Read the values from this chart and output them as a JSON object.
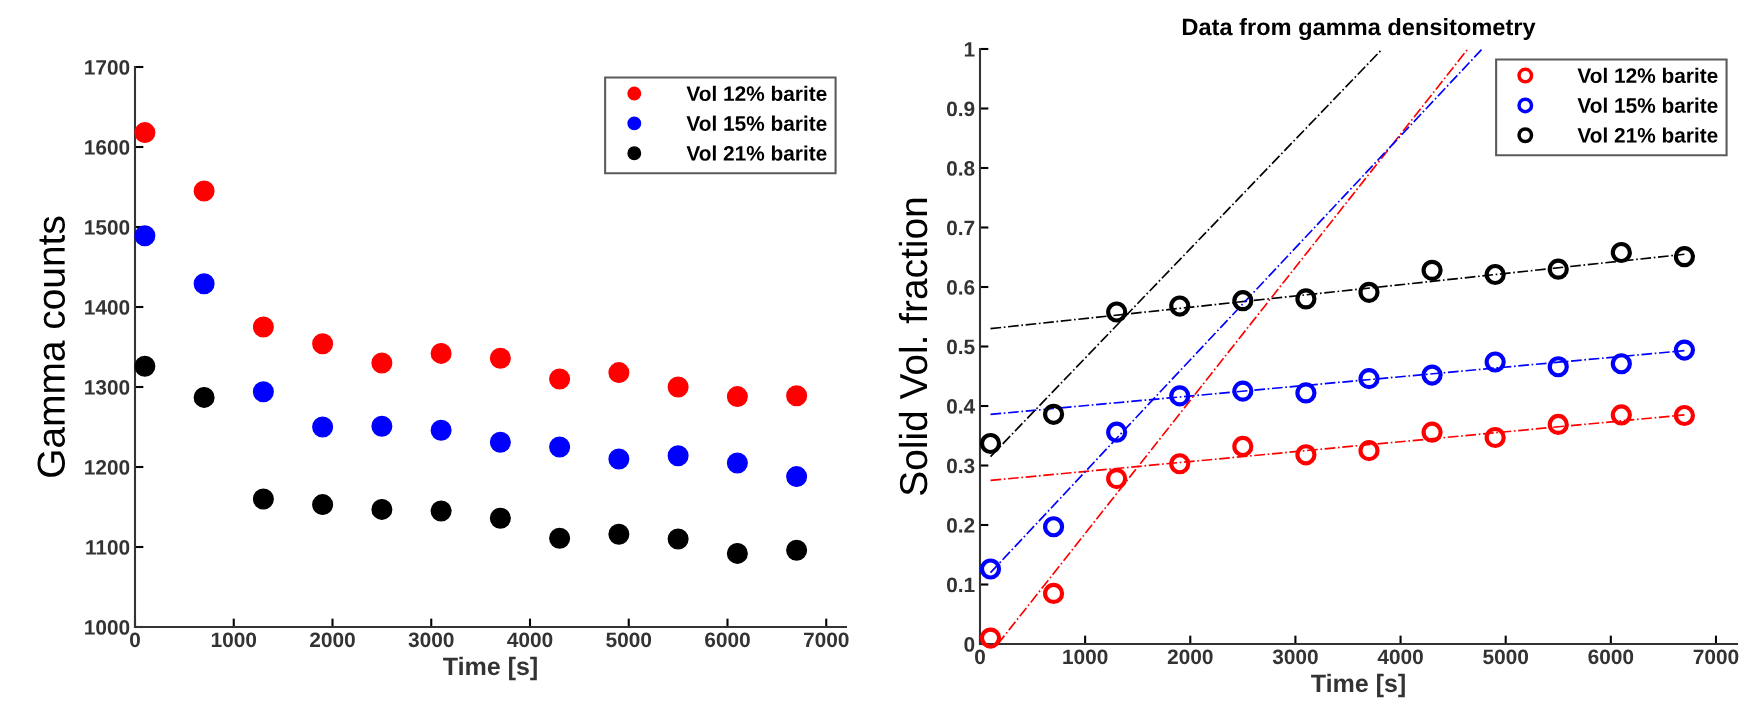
{
  "chart_data": [
    {
      "type": "scatter",
      "xlabel": "Time [s]",
      "ylabel": "Gamma counts",
      "x": [
        100,
        700,
        1300,
        1900,
        2500,
        3100,
        3700,
        4300,
        4900,
        5500,
        6100,
        6700
      ],
      "series": [
        {
          "name": "Vol 12% barite",
          "color": "#ff0000",
          "values": [
            1618,
            1545,
            1375,
            1354,
            1330,
            1342,
            1336,
            1310,
            1318,
            1300,
            1288,
            1289
          ]
        },
        {
          "name": "Vol 15% barite",
          "color": "#0000ff",
          "values": [
            1489,
            1429,
            1294,
            1250,
            1251,
            1246,
            1231,
            1225,
            1210,
            1214,
            1205,
            1188
          ]
        },
        {
          "name": "Vol 21% barite",
          "color": "#000000",
          "values": [
            1326,
            1287,
            1160,
            1153,
            1147,
            1145,
            1136,
            1111,
            1116,
            1110,
            1092,
            1096
          ]
        }
      ],
      "xlim": [
        0,
        7200
      ],
      "xticks": [
        0,
        1000,
        2000,
        3000,
        4000,
        5000,
        6000,
        7000
      ],
      "ylim": [
        1000,
        1700
      ],
      "yticks": [
        1000,
        1100,
        1200,
        1300,
        1400,
        1500,
        1600,
        1700
      ],
      "marker": "circle",
      "legend": "top right",
      "grid": false
    },
    {
      "type": "scatter",
      "title": "Data from gamma densitometry",
      "xlabel": "Time [s]",
      "ylabel": "Solid Vol. fraction",
      "x": [
        100,
        700,
        1300,
        1900,
        2500,
        3100,
        3700,
        4300,
        4900,
        5500,
        6100,
        6700
      ],
      "series": [
        {
          "name": "Vol 12% barite",
          "color": "#ff0000",
          "values": [
            0.01,
            0.085,
            0.278,
            0.303,
            0.332,
            0.318,
            0.325,
            0.356,
            0.347,
            0.369,
            0.385,
            0.384
          ]
        },
        {
          "name": "Vol 15% barite",
          "color": "#0000ff",
          "values": [
            0.126,
            0.197,
            0.356,
            0.417,
            0.425,
            0.422,
            0.446,
            0.452,
            0.474,
            0.466,
            0.471,
            0.494
          ]
        },
        {
          "name": "Vol 21% barite",
          "color": "#000000",
          "values": [
            0.337,
            0.386,
            0.558,
            0.568,
            0.577,
            0.58,
            0.591,
            0.628,
            0.621,
            0.63,
            0.658,
            0.651
          ]
        },
        {
          "type": "line",
          "marker": "none",
          "line_style": "dashdot",
          "color": "#ff0000",
          "x": [
            100,
            6700
          ],
          "values": [
            0.275,
            0.385
          ]
        },
        {
          "type": "line",
          "marker": "none",
          "line_style": "dashdot",
          "color": "#0000ff",
          "x": [
            100,
            6700
          ],
          "values": [
            0.386,
            0.493
          ]
        },
        {
          "type": "line",
          "marker": "none",
          "line_style": "dashdot",
          "color": "#000000",
          "x": [
            100,
            6700
          ],
          "values": [
            0.53,
            0.655
          ]
        },
        {
          "type": "line",
          "marker": "none",
          "line_style": "dashdot",
          "color": "#ff0000",
          "x": [
            170,
            4640
          ],
          "values": [
            0,
            1
          ]
        },
        {
          "type": "line",
          "marker": "none",
          "line_style": "dashdot",
          "color": "#0000ff",
          "x": [
            100,
            4776
          ],
          "values": [
            0.12,
            1
          ]
        },
        {
          "type": "line",
          "marker": "none",
          "line_style": "dashdot",
          "color": "#000000",
          "x": [
            100,
            3826
          ],
          "values": [
            0.315,
            1
          ]
        }
      ],
      "xlim": [
        0,
        7200
      ],
      "xticks": [
        0,
        1000,
        2000,
        3000,
        4000,
        5000,
        6000,
        7000
      ],
      "ylim": [
        0,
        1
      ],
      "yticks": [
        0,
        0.1,
        0.2,
        0.3,
        0.4,
        0.5,
        0.6,
        0.7,
        0.8,
        0.9,
        1
      ],
      "marker": "circle",
      "legend": "top right",
      "grid": false
    }
  ]
}
